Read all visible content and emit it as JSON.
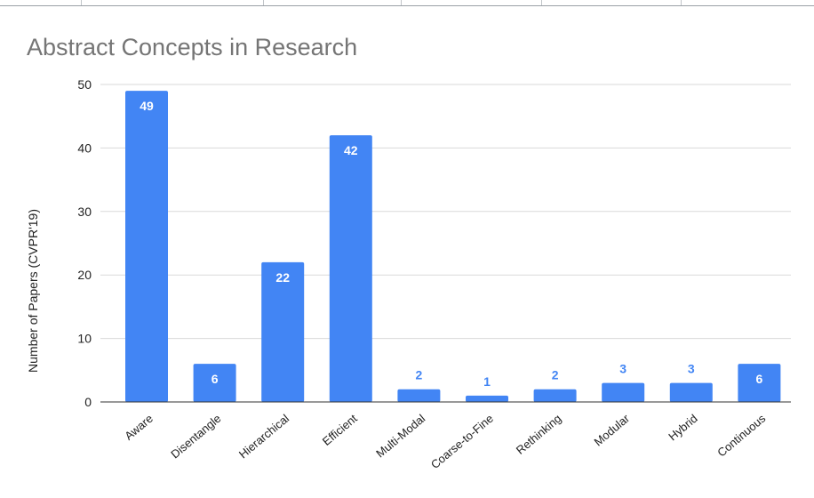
{
  "chart_data": {
    "type": "bar",
    "title": "Abstract Concepts in Research",
    "xlabel": "",
    "ylabel": "Number of Papers (CVPR'19)",
    "categories": [
      "Aware",
      "Disentangle",
      "Hierarchical",
      "Efficient",
      "Multi-Modal",
      "Coarse-to-Fine",
      "Rethinking",
      "Modular",
      "Hybrid",
      "Continuous"
    ],
    "values": [
      49,
      6,
      22,
      42,
      2,
      1,
      2,
      3,
      3,
      6
    ],
    "ylim": [
      0,
      50
    ],
    "yticks": [
      0,
      10,
      20,
      30,
      40,
      50
    ],
    "grid": true,
    "colors": {
      "bar": "#4285f4",
      "label_inside": "#ffffff",
      "label_outside": "#4285f4",
      "grid": "#d9d9d9",
      "axis": "#333333",
      "title": "#757575"
    }
  }
}
